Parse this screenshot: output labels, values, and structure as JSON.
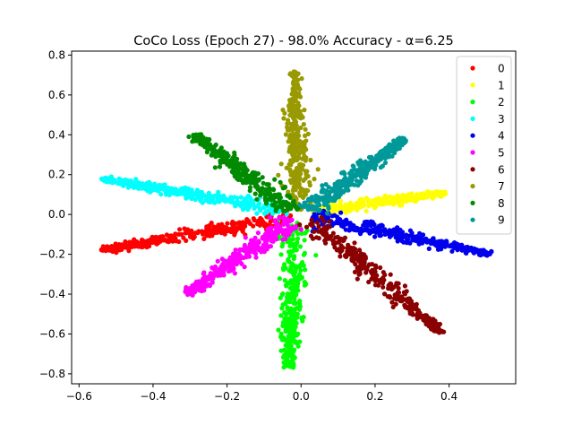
{
  "chart_data": {
    "type": "scatter",
    "title": "CoCo Loss (Epoch 27) - 98.0% Accuracy - α=6.25",
    "xlabel": "",
    "ylabel": "",
    "xlim": [
      -0.62,
      0.58
    ],
    "ylim": [
      -0.85,
      0.82
    ],
    "xticks": [
      -0.6,
      -0.4,
      -0.2,
      0.0,
      0.2,
      0.4
    ],
    "xtick_labels": [
      "−0.6",
      "−0.4",
      "−0.2",
      "0.0",
      "0.2",
      "0.4"
    ],
    "yticks": [
      -0.8,
      -0.6,
      -0.4,
      -0.2,
      0.0,
      0.2,
      0.4,
      0.6,
      0.8
    ],
    "ytick_labels": [
      "−0.8",
      "−0.6",
      "−0.4",
      "−0.2",
      "0.0",
      "0.2",
      "0.4",
      "0.6",
      "0.8"
    ],
    "grid": false,
    "legend_position": "top-right",
    "series": [
      {
        "name": "0",
        "color": "#ff0000",
        "start": [
          -0.02,
          -0.01
        ],
        "end": [
          -0.54,
          -0.18
        ],
        "spread": 0.012
      },
      {
        "name": "1",
        "color": "#ffff00",
        "start": [
          0.03,
          0.01
        ],
        "end": [
          0.39,
          0.11
        ],
        "spread": 0.01
      },
      {
        "name": "2",
        "color": "#00ff00",
        "start": [
          -0.02,
          -0.03
        ],
        "end": [
          -0.03,
          -0.77
        ],
        "spread": 0.013
      },
      {
        "name": "3",
        "color": "#00ffff",
        "start": [
          -0.03,
          0.02
        ],
        "end": [
          -0.54,
          0.18
        ],
        "spread": 0.012
      },
      {
        "name": "4",
        "color": "#0000ee",
        "start": [
          0.03,
          -0.01
        ],
        "end": [
          0.51,
          -0.2
        ],
        "spread": 0.012
      },
      {
        "name": "5",
        "color": "#ff00ff",
        "start": [
          -0.02,
          -0.03
        ],
        "end": [
          -0.31,
          -0.4
        ],
        "spread": 0.014
      },
      {
        "name": "6",
        "color": "#8b0000",
        "start": [
          0.02,
          -0.02
        ],
        "end": [
          0.38,
          -0.6
        ],
        "spread": 0.013
      },
      {
        "name": "7",
        "color": "#999900",
        "start": [
          -0.01,
          0.02
        ],
        "end": [
          -0.02,
          0.72
        ],
        "spread": 0.012
      },
      {
        "name": "8",
        "color": "#008b00",
        "start": [
          -0.02,
          0.02
        ],
        "end": [
          -0.29,
          0.4
        ],
        "spread": 0.013
      },
      {
        "name": "9",
        "color": "#009999",
        "start": [
          0.02,
          0.02
        ],
        "end": [
          0.28,
          0.38
        ],
        "spread": 0.013
      }
    ]
  }
}
